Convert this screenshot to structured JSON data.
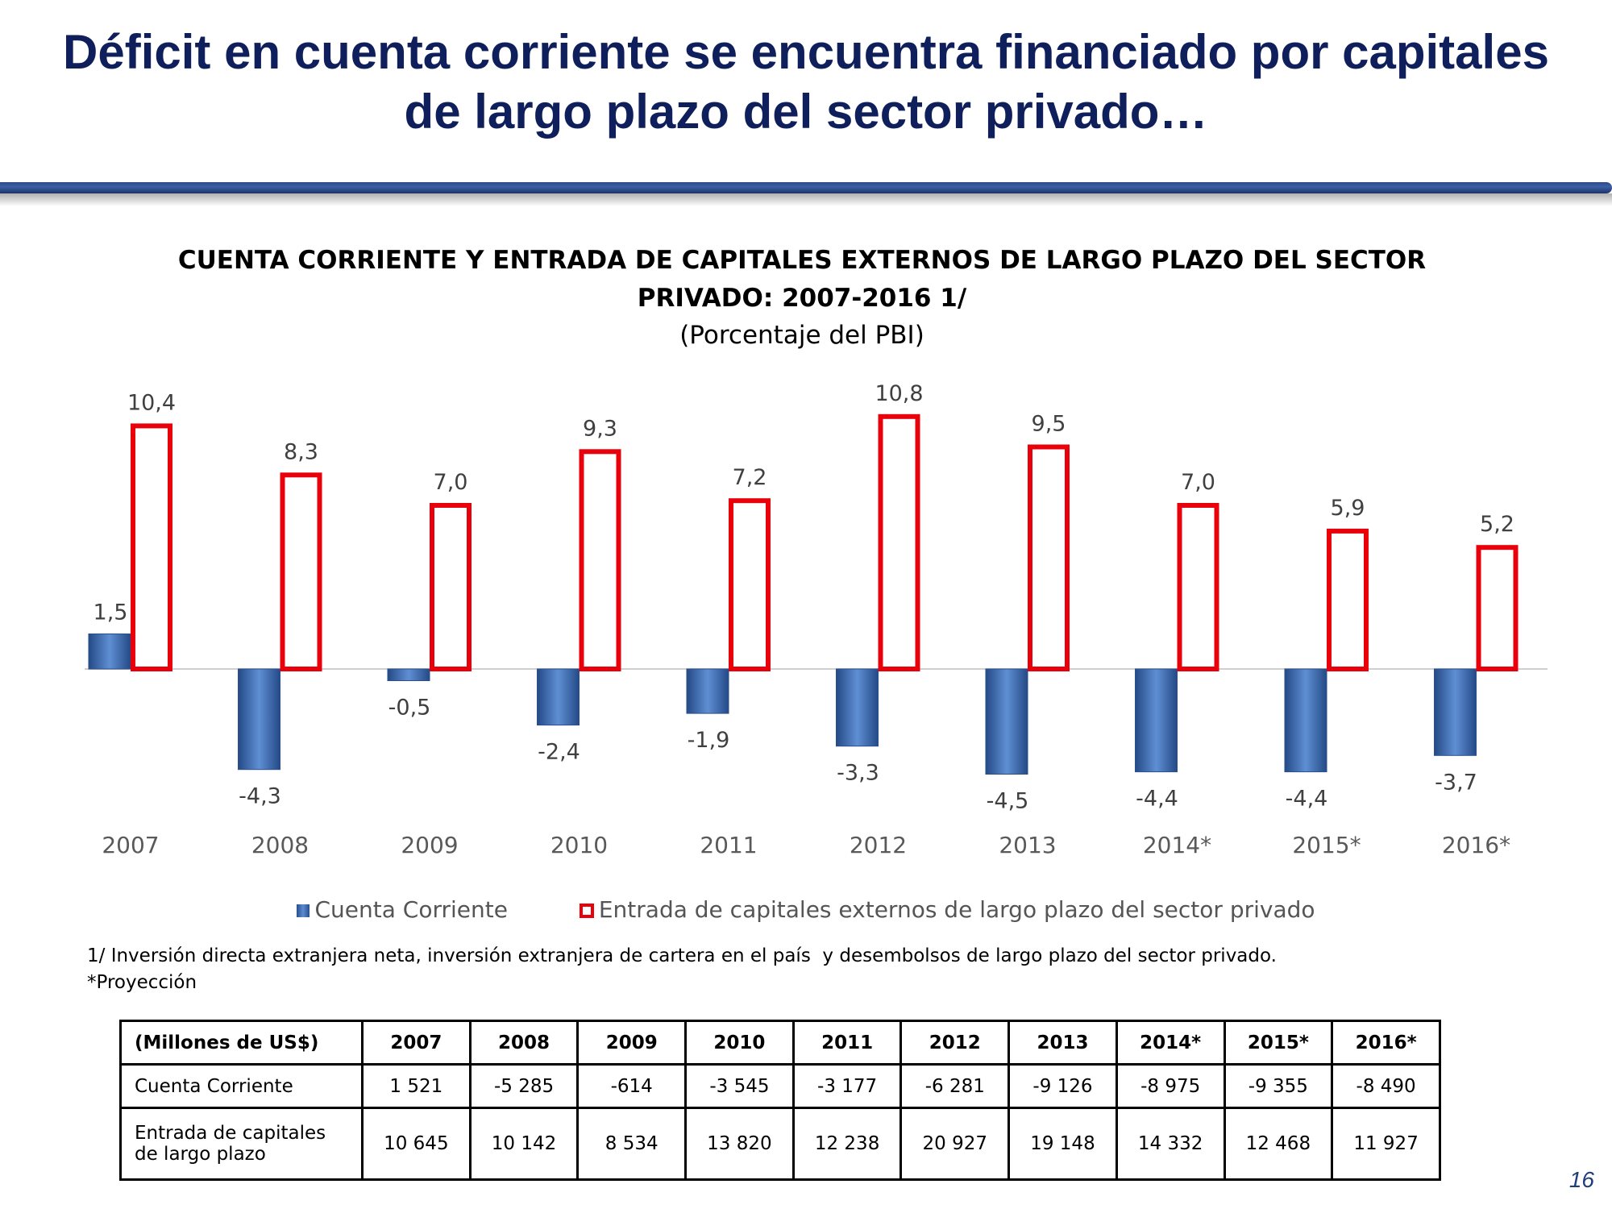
{
  "slide": {
    "title_line1": "Déficit en cuenta corriente se encuentra financiado por capitales",
    "title_line2": "de largo plazo del sector privado…",
    "page_number": "16"
  },
  "chart_data": {
    "type": "bar",
    "title_line1": "CUENTA CORRIENTE Y ENTRADA DE CAPITALES EXTERNOS DE LARGO PLAZO DEL SECTOR",
    "title_line2": "PRIVADO: 2007-2016 1/",
    "subtitle": "(Porcentaje del PBI)",
    "categories": [
      "2007",
      "2008",
      "2009",
      "2010",
      "2011",
      "2012",
      "2013",
      "2014*",
      "2015*",
      "2016*"
    ],
    "series": [
      {
        "name": "Cuenta Corriente",
        "values": [
          1.5,
          -4.3,
          -0.5,
          -2.4,
          -1.9,
          -3.3,
          -4.5,
          -4.4,
          -4.4,
          -3.7
        ],
        "labels": [
          "1,5",
          "-4,3",
          "-0,5",
          "-2,4",
          "-1,9",
          "-3,3",
          "-4,5",
          "-4,4",
          "-4,4",
          "-3,7"
        ],
        "color": "#3a69b2"
      },
      {
        "name": "Entrada de capitales externos de largo plazo del sector privado",
        "values": [
          10.4,
          8.3,
          7.0,
          9.3,
          7.2,
          10.8,
          9.5,
          7.0,
          5.9,
          5.2
        ],
        "labels": [
          "10,4",
          "8,3",
          "7,0",
          "9,3",
          "7,2",
          "10,8",
          "9,5",
          "7,0",
          "5,9",
          "5,2"
        ],
        "color": "#e8000b"
      }
    ],
    "legend_position": "bottom",
    "grid": false
  },
  "footnotes": {
    "note1": "1/ Inversión directa extranjera neta, inversión extranjera de cartera en el país  y desembolsos de largo plazo del sector privado.",
    "note2": "*Proyección"
  },
  "table": {
    "header_label": "(Millones de US$)",
    "years": [
      "2007",
      "2008",
      "2009",
      "2010",
      "2011",
      "2012",
      "2013",
      "2014*",
      "2015*",
      "2016*"
    ],
    "rows": [
      {
        "label_line1": "Cuenta Corriente",
        "label_line2": "",
        "values": [
          "1 521",
          "-5 285",
          "-614",
          "-3 545",
          "-3 177",
          "-6 281",
          "-9 126",
          "-8 975",
          "-9 355",
          "-8 490"
        ]
      },
      {
        "label_line1": "Entrada de capitales",
        "label_line2": "de largo plazo",
        "values": [
          "10 645",
          "10 142",
          "8 534",
          "13 820",
          "12 238",
          "20 927",
          "19 148",
          "14 332",
          "12 468",
          "11 927"
        ]
      }
    ]
  },
  "colors": {
    "title": "#0f1f5c",
    "bar_blue": "#3a69b2",
    "bar_red": "#e8000b"
  }
}
